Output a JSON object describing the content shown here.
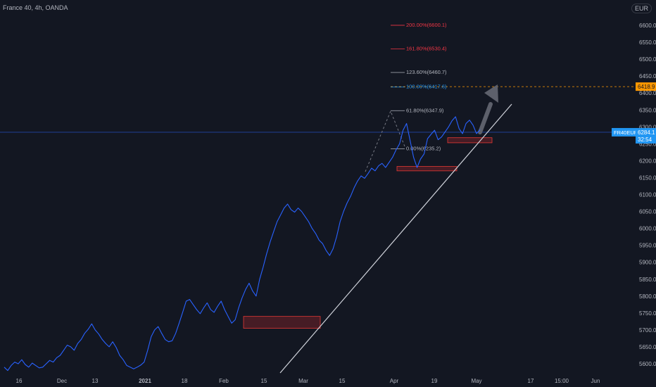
{
  "header": {
    "symbol_title": "France 40, 4h, OANDA",
    "currency": "EUR"
  },
  "colors": {
    "background": "#131722",
    "price_line": "#2962ff",
    "trendline": "#d1d4dc",
    "zone_fill": "#5c1f27",
    "zone_border": "#e53935",
    "fib_red": "#f23645",
    "fib_gray": "#b2b5be",
    "fib_blue": "#2196f3",
    "axis_text": "#b2b5be",
    "arrow": "#5d606b",
    "badge_orange": "#ff9800",
    "badge_blue": "#2196f3"
  },
  "chart_data": {
    "type": "line",
    "title": "France 40, 4h, OANDA",
    "ylim": [
      5580,
      6660
    ],
    "y_ticks": [
      "5600.0",
      "5650.0",
      "5700.0",
      "5750.0",
      "5800.0",
      "5850.0",
      "5900.0",
      "5950.0",
      "6000.0",
      "6050.0",
      "6100.0",
      "6150.0",
      "6200.0",
      "6250.0",
      "6300.0",
      "6350.0",
      "6400.0",
      "6450.0",
      "6500.0",
      "6550.0",
      "6600.0"
    ],
    "x_ticks": [
      "16",
      "Dec",
      "13",
      "2021",
      "18",
      "Feb",
      "15",
      "Mar",
      "15",
      "Apr",
      "19",
      "May",
      "17",
      "15:00",
      "Jun"
    ],
    "grid": false,
    "series": [
      {
        "values": [
          5590,
          5580,
          5595,
          5605,
          5600,
          5612,
          5598,
          5590,
          5602,
          5595,
          5588,
          5590,
          5600,
          5610,
          5605,
          5618,
          5625,
          5640,
          5655,
          5650,
          5640,
          5660,
          5672,
          5690,
          5702,
          5718,
          5700,
          5688,
          5672,
          5660,
          5650,
          5665,
          5648,
          5625,
          5612,
          5595,
          5590,
          5585,
          5590,
          5596,
          5605,
          5640,
          5680,
          5700,
          5710,
          5690,
          5672,
          5665,
          5668,
          5690,
          5720,
          5752,
          5785,
          5790,
          5775,
          5760,
          5748,
          5765,
          5780,
          5760,
          5752,
          5770,
          5785,
          5760,
          5740,
          5720,
          5730,
          5765,
          5795,
          5820,
          5838,
          5815,
          5800,
          5850,
          5885,
          5925,
          5960,
          5990,
          6020,
          6040,
          6060,
          6072,
          6055,
          6048,
          6060,
          6050,
          6035,
          6020,
          6000,
          5985,
          5965,
          5955,
          5935,
          5920,
          5940,
          5975,
          6020,
          6050,
          6075,
          6095,
          6120,
          6140,
          6155,
          6148,
          6162,
          6178,
          6170,
          6185,
          6192,
          6180,
          6195,
          6210,
          6232,
          6250,
          6290,
          6310,
          6260,
          6210,
          6180,
          6205,
          6220,
          6265,
          6278,
          6290,
          6262,
          6270,
          6285,
          6300,
          6318,
          6330,
          6295,
          6280,
          6310,
          6320,
          6305,
          6280,
          6292
        ],
        "last": "6284.1"
      }
    ],
    "fibonacci": [
      {
        "label": "200.00%(6600.1)",
        "price": 6600.1,
        "color": "red"
      },
      {
        "label": "161.80%(6530.4)",
        "price": 6530.4,
        "color": "red"
      },
      {
        "label": "123.60%(6460.7)",
        "price": 6460.7,
        "color": "gray"
      },
      {
        "label": "100.00%(6417.6)",
        "price": 6417.6,
        "color": "blue"
      },
      {
        "label": "61.80%(6347.9)",
        "price": 6347.9,
        "color": "gray"
      },
      {
        "label": "0.00%(6235.2)",
        "price": 6235.2,
        "color": "gray"
      }
    ],
    "zones": [
      {
        "name": "support-zone-feb",
        "y_range": [
          5705,
          5740
        ]
      },
      {
        "name": "support-zone-apr",
        "y_range": [
          6170,
          6183
        ]
      },
      {
        "name": "support-zone-may",
        "y_range": [
          6253,
          6268
        ]
      }
    ],
    "trendline": {
      "from_price": 5580,
      "to_price": 6375
    },
    "target_level": {
      "label": "6418.9",
      "price": 6418.9
    },
    "last_price_badge": {
      "symbol": "FR40EUR",
      "price": "6284.1",
      "countdown": "32:54"
    }
  }
}
